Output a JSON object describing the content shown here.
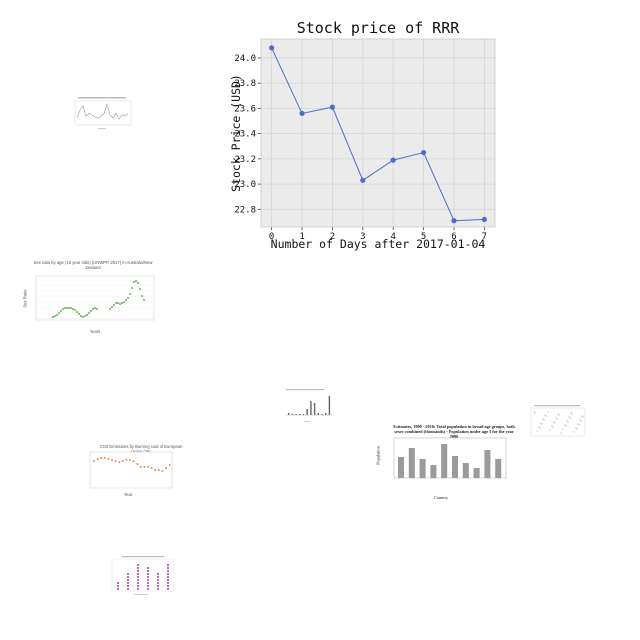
{
  "chart_data": [
    {
      "type": "line",
      "title": "Stock price of RRR",
      "xlabel": "Number of Days after 2017-01-04",
      "ylabel": "Stock Price (USD)",
      "x": [
        0,
        1,
        2,
        3,
        4,
        5,
        6,
        7
      ],
      "series": [
        {
          "values": [
            24.08,
            23.56,
            23.61,
            23.03,
            23.19,
            23.25,
            22.71,
            22.72
          ]
        }
      ],
      "x_ticks": [
        "0",
        "1",
        "2",
        "3",
        "4",
        "5",
        "6",
        "7"
      ],
      "y_ticks": [
        "22.8",
        "23.0",
        "23.2",
        "23.4",
        "23.6",
        "23.8",
        "24.0"
      ],
      "ylim": [
        22.66,
        24.15
      ],
      "xlim": [
        -0.35,
        7.35
      ],
      "grid": true,
      "color": "#4a6fc9",
      "background": "#ebebeb"
    },
    {
      "type": "line",
      "title": "Sex ratio by age (15 year olds) (UNWPP, 2017) in Australia/New Zealand",
      "xlabel": "Years",
      "ylabel": "Sex Ratio",
      "color": "#3a9a2a"
    },
    {
      "type": "bar",
      "title": "Estimates, 1990 - 2016: Total population in broad age groups, both sexes combined (thousands) - Population under age 5 for the year 2000",
      "xlabel": "Country",
      "ylabel": "Population",
      "color": "#9a9a9a"
    },
    {
      "type": "scatter",
      "title": "CO2 Emissions by Burning coal of European Union (28)",
      "xlabel": "Year",
      "color": "#e0701f"
    },
    {
      "type": "line",
      "color": "#777777"
    },
    {
      "type": "bar",
      "color": "#666666"
    },
    {
      "type": "scatter",
      "color": "#a03aa0"
    },
    {
      "type": "scatter",
      "color": "#888888"
    }
  ]
}
